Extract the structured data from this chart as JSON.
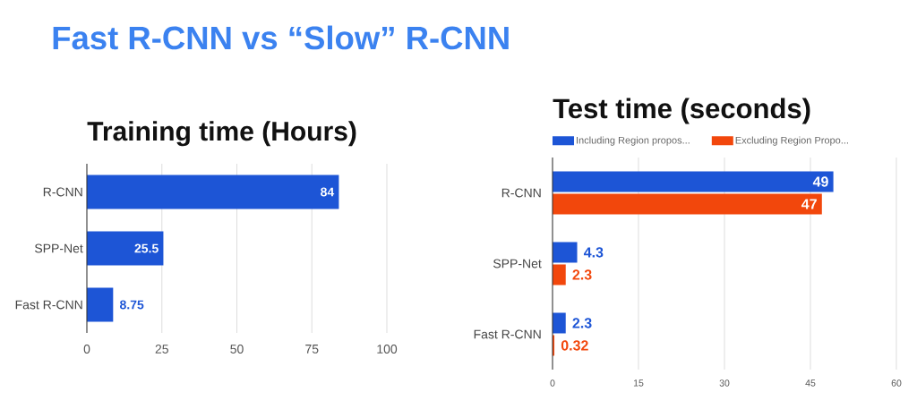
{
  "chart_data": [
    {
      "type": "other",
      "title": "Fast R-CNN vs “Slow” R-CNN"
    },
    {
      "type": "bar",
      "orientation": "horizontal",
      "title": "Training time (Hours)",
      "categories": [
        "R-CNN",
        "SPP-Net",
        "Fast R-CNN"
      ],
      "values": [
        84,
        25.5,
        8.75
      ],
      "color": "#1d55d6",
      "xlim": [
        0,
        100
      ],
      "xticks": [
        0,
        25,
        50,
        75,
        100
      ],
      "grid": "x",
      "data_labels": true
    },
    {
      "type": "bar",
      "orientation": "horizontal",
      "title": "Test time (seconds)",
      "categories": [
        "R-CNN",
        "SPP-Net",
        "Fast R-CNN"
      ],
      "series": [
        {
          "name": "Including Region propos...",
          "color": "#1d55d6",
          "values": [
            49,
            4.3,
            2.3
          ]
        },
        {
          "name": "Excluding Region Propo...",
          "color": "#f2470c",
          "values": [
            47,
            2.3,
            0.32
          ]
        }
      ],
      "xlim": [
        0,
        60
      ],
      "xticks": [
        0,
        15,
        30,
        45,
        60
      ],
      "grid": "x",
      "legend": "top",
      "data_labels": true
    }
  ]
}
